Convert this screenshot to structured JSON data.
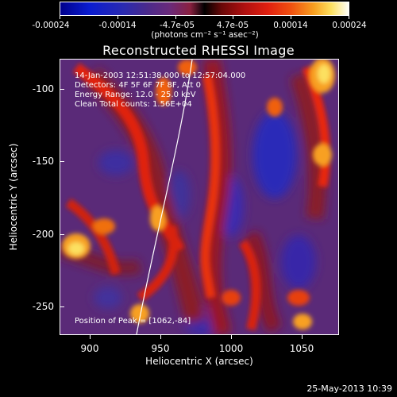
{
  "colorbar": {
    "tick_labels": [
      "-0.00024",
      "-0.00014",
      "-4.7e-05",
      "4.7e-05",
      "0.00014",
      "0.00024"
    ],
    "units": "(photons cm⁻² s⁻¹ asec⁻²)"
  },
  "title": "Reconstructed RHESSI Image",
  "info": {
    "time": "14-Jan-2003 12:51:38.000 to 12:57:04.000",
    "detectors": "Detectors: 4F 5F 6F 7F 8F, Att 0",
    "energy": "Energy Range: 12.0 - 25.0 keV",
    "method": "Clean    Total counts: 1.56E+04",
    "peak": "Position of Peak = [1062,-84]"
  },
  "axes": {
    "x_title": "Heliocentric X (arcsec)",
    "y_title": "Heliocentric Y (arcsec)",
    "x_ticks": [
      "900",
      "950",
      "1000",
      "1050"
    ],
    "y_ticks": [
      "-100",
      "-150",
      "-200",
      "-250"
    ]
  },
  "datestamp": "25-May-2013 10:39",
  "colors": {
    "background": "#000000",
    "axis": "#ffffff",
    "limb": "#ffffff"
  }
}
